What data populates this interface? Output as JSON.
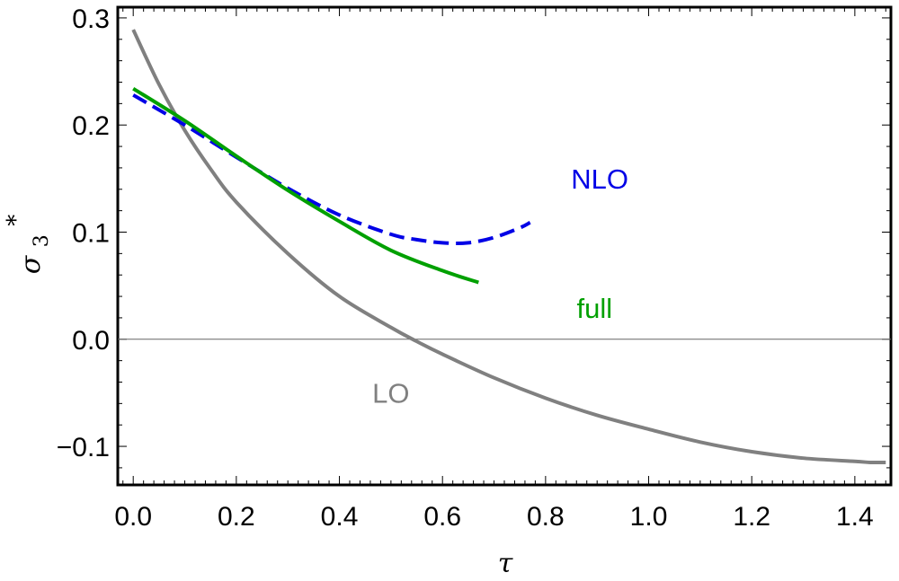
{
  "chart_data": {
    "type": "line",
    "title": "",
    "xlabel": "τ",
    "ylabel": {
      "base": "σ",
      "sub": "3",
      "sup": "*"
    },
    "xlim": [
      -0.03,
      1.47
    ],
    "ylim": [
      -0.136,
      0.31
    ],
    "x_ticks": [
      {
        "value": 0.0,
        "label": "0.0"
      },
      {
        "value": 0.2,
        "label": "0.2"
      },
      {
        "value": 0.4,
        "label": "0.4"
      },
      {
        "value": 0.6,
        "label": "0.6"
      },
      {
        "value": 0.8,
        "label": "0.8"
      },
      {
        "value": 1.0,
        "label": "1.0"
      },
      {
        "value": 1.2,
        "label": "1.2"
      },
      {
        "value": 1.4,
        "label": "1.4"
      }
    ],
    "y_ticks": [
      {
        "value": 0.3,
        "label": "0.3"
      },
      {
        "value": 0.2,
        "label": "0.2"
      },
      {
        "value": 0.1,
        "label": "0.1"
      },
      {
        "value": 0.0,
        "label": "0.0"
      },
      {
        "value": -0.1,
        "label": "−0.1"
      }
    ],
    "zero_line": true,
    "grid": false,
    "series": [
      {
        "name": "LO",
        "color": "#808080",
        "dash": "solid",
        "x": [
          0.0,
          0.05,
          0.1,
          0.15,
          0.2,
          0.3,
          0.4,
          0.5,
          0.55,
          0.6,
          0.7,
          0.8,
          0.9,
          1.0,
          1.1,
          1.2,
          1.3,
          1.4,
          1.43,
          1.46
        ],
        "y": [
          0.289,
          0.238,
          0.195,
          0.159,
          0.128,
          0.08,
          0.04,
          0.011,
          -0.002,
          -0.014,
          -0.036,
          -0.055,
          -0.071,
          -0.084,
          -0.096,
          -0.105,
          -0.111,
          -0.114,
          -0.115,
          -0.115
        ]
      },
      {
        "name": "NLO",
        "color": "#0000e6",
        "dash": "dashed",
        "x": [
          0.0,
          0.1,
          0.2,
          0.3,
          0.4,
          0.5,
          0.55,
          0.6,
          0.65,
          0.7,
          0.75,
          0.77
        ],
        "y": [
          0.228,
          0.2,
          0.17,
          0.141,
          0.116,
          0.098,
          0.093,
          0.09,
          0.09,
          0.095,
          0.104,
          0.109
        ]
      },
      {
        "name": "full",
        "color": "#00a000",
        "dash": "solid",
        "x": [
          0.0,
          0.1,
          0.2,
          0.3,
          0.4,
          0.5,
          0.6,
          0.67
        ],
        "y": [
          0.234,
          0.204,
          0.171,
          0.139,
          0.11,
          0.083,
          0.064,
          0.053
        ]
      }
    ],
    "annotations": [
      {
        "text": "NLO",
        "series": "NLO",
        "x": 0.905,
        "y": 0.15,
        "color": "#0000e6"
      },
      {
        "text": "full",
        "series": "full",
        "x": 0.895,
        "y": 0.029,
        "color": "#00a000"
      },
      {
        "text": "LO",
        "series": "LO",
        "x": 0.5,
        "y": -0.05,
        "color": "#808080"
      }
    ]
  }
}
